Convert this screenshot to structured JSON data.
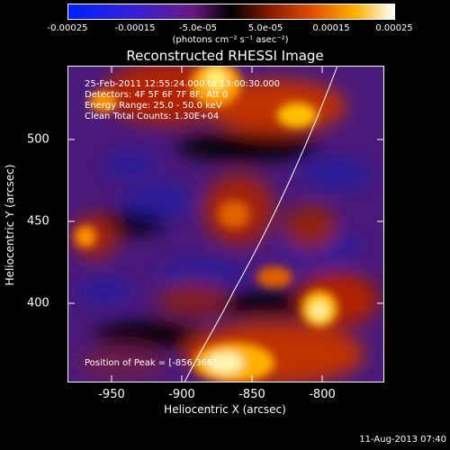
{
  "colorbar": {
    "ticks": [
      "-0.00025",
      "-0.00015",
      "-5.0e-05",
      "5.0e-05",
      "0.00015",
      "0.00025"
    ],
    "units": "(photons cm⁻² s⁻¹ asec⁻²)"
  },
  "title": "Reconstructed RHESSI Image",
  "info": {
    "line1": "25-Feb-2011 12:55:24.000 to 13:00:30.000",
    "line2": "Detectors: 4F 5F 6F 7F 8F; Att 0",
    "line3": "Energy Range: 25.0 - 50.0 keV",
    "line4": "Clean     Total Counts: 1.30E+04"
  },
  "peak": "Position of Peak = [-856,366]",
  "axes": {
    "xlabel": "Heliocentric X (arcsec)",
    "ylabel": "Heliocentric Y (arcsec)",
    "xticks": [
      "-950",
      "-900",
      "-850",
      "-800"
    ],
    "yticks": [
      "500",
      "450",
      "400"
    ]
  },
  "timestamp": "11-Aug-2013 07:40"
}
